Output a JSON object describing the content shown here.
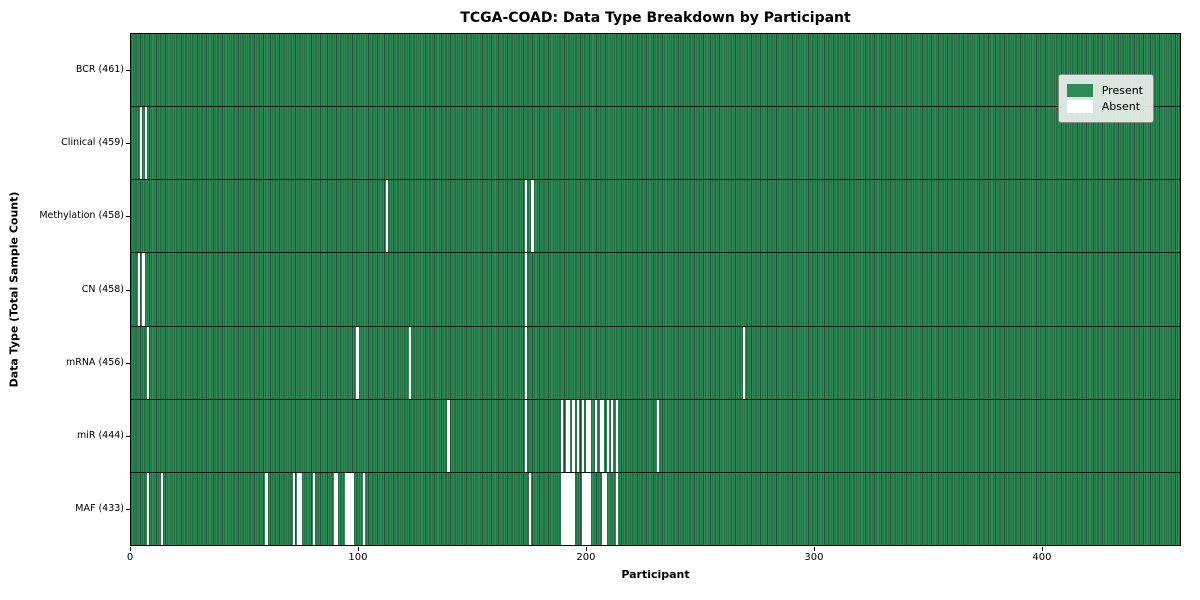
{
  "title": "TCGA-COAD: Data Type Breakdown by Participant",
  "chart_data": {
    "type": "heatmap",
    "title": "TCGA-COAD: Data Type Breakdown by Participant",
    "xlabel": "Participant",
    "ylabel": "Data Type (Total Sample Count)",
    "xlim": [
      0,
      461
    ],
    "x_ticks": [
      0,
      100,
      200,
      300,
      400
    ],
    "n_participants": 461,
    "grid": false,
    "legend_position": "upper right",
    "legend": [
      {
        "label": "Present",
        "color": "#2e8b57"
      },
      {
        "label": "Absent",
        "color": "#ffffff"
      }
    ],
    "colors": {
      "present": "#2e8b57",
      "absent": "#ffffff",
      "cell_edge": "#1d5436"
    },
    "rows": [
      {
        "label": "BCR (461)",
        "data_type": "BCR",
        "present_count": 461,
        "absent_participants": []
      },
      {
        "label": "Clinical (459)",
        "data_type": "Clinical",
        "present_count": 459,
        "absent_participants": [
          4,
          6
        ]
      },
      {
        "label": "Methylation (458)",
        "data_type": "Methylation",
        "present_count": 458,
        "absent_participants": [
          112,
          173,
          176
        ]
      },
      {
        "label": "CN (458)",
        "data_type": "CN",
        "present_count": 458,
        "absent_participants": [
          3,
          5,
          173
        ]
      },
      {
        "label": "mRNA (456)",
        "data_type": "mRNA",
        "present_count": 456,
        "absent_participants": [
          7,
          99,
          122,
          173,
          269
        ]
      },
      {
        "label": "miR (444)",
        "data_type": "miR",
        "present_count": 444,
        "absent_participants": [
          139,
          173,
          189,
          191,
          192,
          194,
          196,
          198,
          200,
          201,
          204,
          206,
          207,
          209,
          211,
          213,
          231
        ]
      },
      {
        "label": "MAF (433)",
        "data_type": "MAF",
        "present_count": 433,
        "absent_participants": [
          7,
          13,
          59,
          71,
          73,
          74,
          80,
          89,
          90,
          94,
          95,
          96,
          97,
          102,
          175,
          189,
          190,
          191,
          192,
          193,
          194,
          198,
          199,
          200,
          201,
          207,
          208,
          213
        ]
      }
    ]
  }
}
